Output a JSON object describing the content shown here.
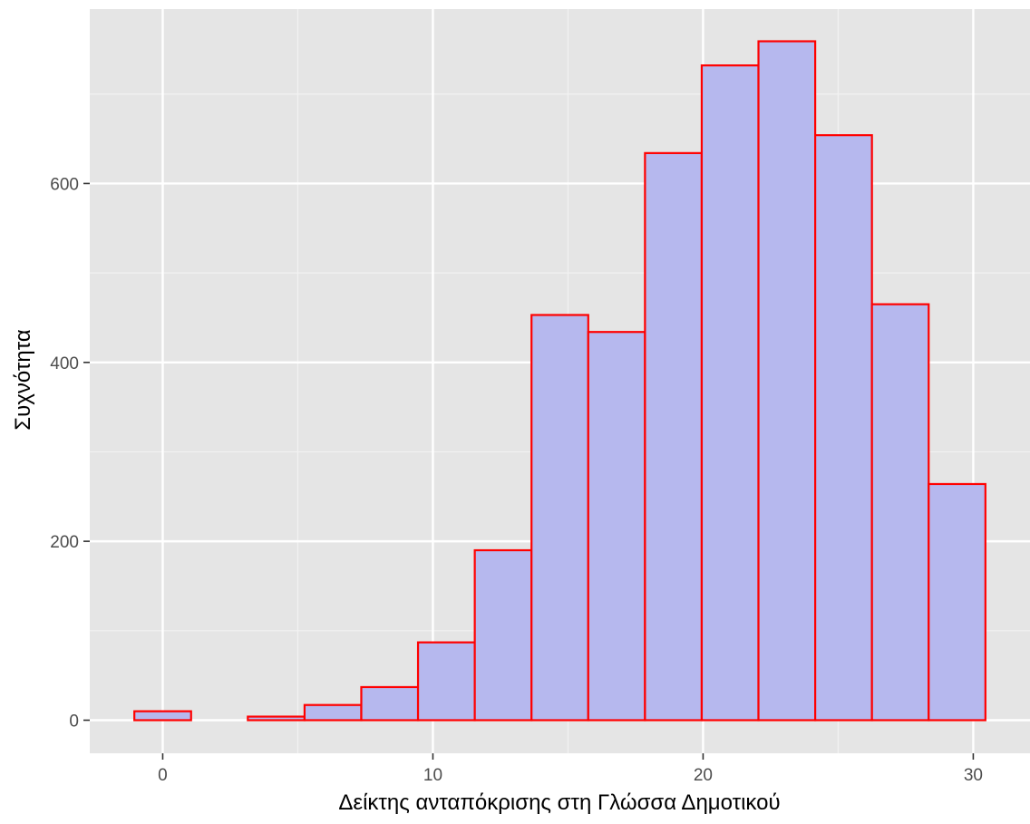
{
  "chart_data": {
    "type": "bar",
    "xlabel": "Δείκτης ανταπόκρισης στη Γλώσσα Δημοτικού",
    "ylabel": "Συχνότητα",
    "bin_width": 2.1,
    "bins": [
      {
        "x0": -1.05,
        "x1": 1.05,
        "count": 10
      },
      {
        "x0": 1.05,
        "x1": 3.15,
        "count": 0
      },
      {
        "x0": 3.15,
        "x1": 5.25,
        "count": 4
      },
      {
        "x0": 5.25,
        "x1": 7.35,
        "count": 17
      },
      {
        "x0": 7.35,
        "x1": 9.45,
        "count": 37
      },
      {
        "x0": 9.45,
        "x1": 11.55,
        "count": 87
      },
      {
        "x0": 11.55,
        "x1": 13.65,
        "count": 190
      },
      {
        "x0": 13.65,
        "x1": 15.75,
        "count": 453
      },
      {
        "x0": 15.75,
        "x1": 17.85,
        "count": 434
      },
      {
        "x0": 17.85,
        "x1": 19.95,
        "count": 634
      },
      {
        "x0": 19.95,
        "x1": 22.05,
        "count": 732
      },
      {
        "x0": 22.05,
        "x1": 24.15,
        "count": 759
      },
      {
        "x0": 24.15,
        "x1": 26.25,
        "count": 654
      },
      {
        "x0": 26.25,
        "x1": 28.35,
        "count": 465
      },
      {
        "x0": 28.35,
        "x1": 30.45,
        "count": 264
      }
    ],
    "x_ticks": [
      0,
      10,
      20,
      30
    ],
    "x_tick_labels": [
      "0",
      "10",
      "20",
      "30"
    ],
    "y_ticks": [
      0,
      200,
      400,
      600
    ],
    "y_tick_labels": [
      "0",
      "200",
      "400",
      "600"
    ],
    "xlim": [
      -2.7,
      32.1
    ],
    "ylim": [
      -37,
      795
    ],
    "grid": true,
    "colors": {
      "panel_background": "#e5e5e5",
      "grid_major": "#ffffff",
      "grid_minor": "#f2f2f2",
      "bar_fill": "#b6b8ee",
      "bar_outline": "#ff0000"
    }
  }
}
